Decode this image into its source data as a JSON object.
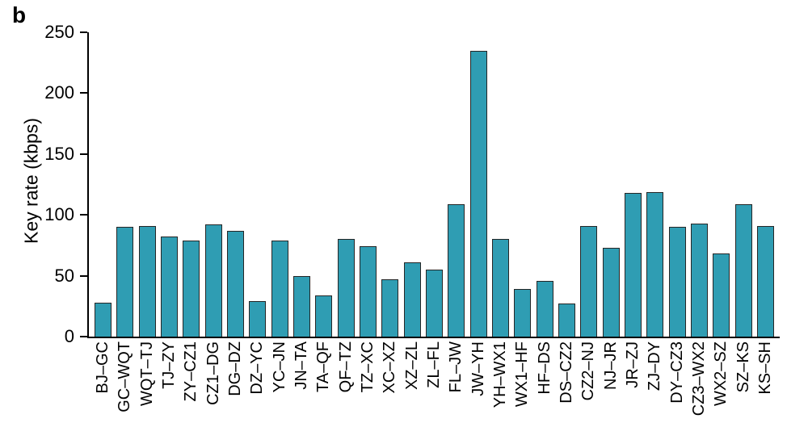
{
  "chart_data": {
    "type": "bar",
    "panel_label": "b",
    "title": "",
    "xlabel": "",
    "ylabel": "Key rate (kbps)",
    "ylim": [
      0,
      250
    ],
    "yticks": [
      0,
      50,
      100,
      150,
      200,
      250
    ],
    "grid": false,
    "legend": "none",
    "bar_color": "#2f9db3",
    "bar_edge_color": "#262626",
    "axis_color": "#000000",
    "categories": [
      "BJ–GC",
      "GC–WQT",
      "WQT–TJ",
      "TJ–ZY",
      "ZY–CZ1",
      "CZ1–DG",
      "DG–DZ",
      "DZ–YC",
      "YC–JN",
      "JN–TA",
      "TA–QF",
      "QF–TZ",
      "TZ–XC",
      "XC–XZ",
      "XZ–ZL",
      "ZL–FL",
      "FL–JW",
      "JW–YH",
      "YH–WX1",
      "WX1–HF",
      "HF–DS",
      "DS–CZ2",
      "CZ2–NJ",
      "NJ–JR",
      "JR–ZJ",
      "ZJ–DY",
      "DY–CZ3",
      "CZ3–WX2",
      "WX2–SZ",
      "SZ–KS",
      "KS–SH"
    ],
    "values": [
      28,
      90,
      91,
      82,
      79,
      92,
      87,
      29,
      79,
      50,
      34,
      80,
      74,
      47,
      61,
      55,
      109,
      235,
      80,
      39,
      46,
      27,
      91,
      73,
      118,
      119,
      90,
      93,
      68,
      109,
      91
    ]
  }
}
